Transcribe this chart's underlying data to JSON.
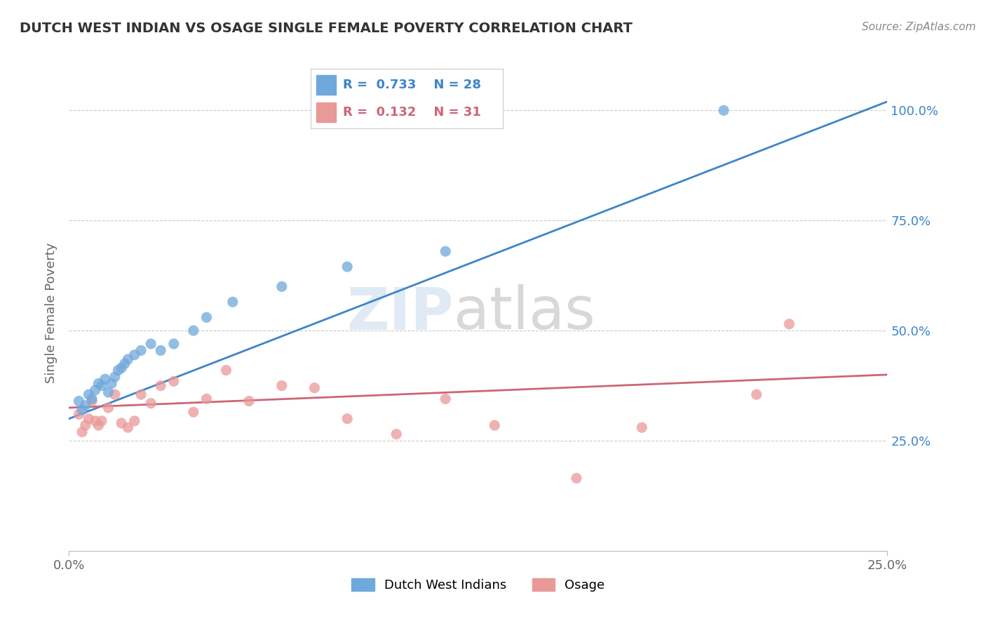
{
  "title": "DUTCH WEST INDIAN VS OSAGE SINGLE FEMALE POVERTY CORRELATION CHART",
  "source": "Source: ZipAtlas.com",
  "ylabel": "Single Female Poverty",
  "xlim": [
    0.0,
    0.25
  ],
  "ylim": [
    0.0,
    1.08
  ],
  "ytick_labels": [
    "25.0%",
    "50.0%",
    "75.0%",
    "100.0%"
  ],
  "ytick_positions": [
    0.25,
    0.5,
    0.75,
    1.0
  ],
  "xtick_positions": [
    0.0,
    0.25
  ],
  "xtick_labels": [
    "0.0%",
    "25.0%"
  ],
  "blue_label": "Dutch West Indians",
  "pink_label": "Osage",
  "blue_R": "0.733",
  "blue_N": "28",
  "pink_R": "0.132",
  "pink_N": "31",
  "blue_color": "#6fa8dc",
  "pink_color": "#ea9999",
  "blue_line_color": "#3d85c8",
  "pink_line_color": "#cc6677",
  "background_color": "#ffffff",
  "grid_color": "#cccccc",
  "blue_scatter_x": [
    0.003,
    0.004,
    0.005,
    0.006,
    0.007,
    0.008,
    0.009,
    0.01,
    0.011,
    0.012,
    0.013,
    0.014,
    0.015,
    0.016,
    0.017,
    0.018,
    0.02,
    0.022,
    0.025,
    0.028,
    0.032,
    0.038,
    0.042,
    0.05,
    0.065,
    0.085,
    0.115,
    0.2
  ],
  "blue_scatter_y": [
    0.34,
    0.32,
    0.33,
    0.355,
    0.345,
    0.365,
    0.38,
    0.375,
    0.39,
    0.36,
    0.38,
    0.395,
    0.41,
    0.415,
    0.425,
    0.435,
    0.445,
    0.455,
    0.47,
    0.455,
    0.47,
    0.5,
    0.53,
    0.565,
    0.6,
    0.645,
    0.68,
    1.0
  ],
  "pink_scatter_x": [
    0.003,
    0.004,
    0.005,
    0.006,
    0.007,
    0.008,
    0.009,
    0.01,
    0.012,
    0.014,
    0.016,
    0.018,
    0.02,
    0.022,
    0.025,
    0.028,
    0.032,
    0.038,
    0.042,
    0.048,
    0.055,
    0.065,
    0.075,
    0.085,
    0.1,
    0.115,
    0.13,
    0.155,
    0.175,
    0.21,
    0.22
  ],
  "pink_scatter_y": [
    0.31,
    0.27,
    0.285,
    0.3,
    0.34,
    0.295,
    0.285,
    0.295,
    0.325,
    0.355,
    0.29,
    0.28,
    0.295,
    0.355,
    0.335,
    0.375,
    0.385,
    0.315,
    0.345,
    0.41,
    0.34,
    0.375,
    0.37,
    0.3,
    0.265,
    0.345,
    0.285,
    0.165,
    0.28,
    0.355,
    0.515
  ],
  "blue_line_x": [
    0.0,
    0.25
  ],
  "blue_line_y": [
    0.3,
    1.02
  ],
  "pink_line_x": [
    0.0,
    0.25
  ],
  "pink_line_y": [
    0.325,
    0.4
  ]
}
